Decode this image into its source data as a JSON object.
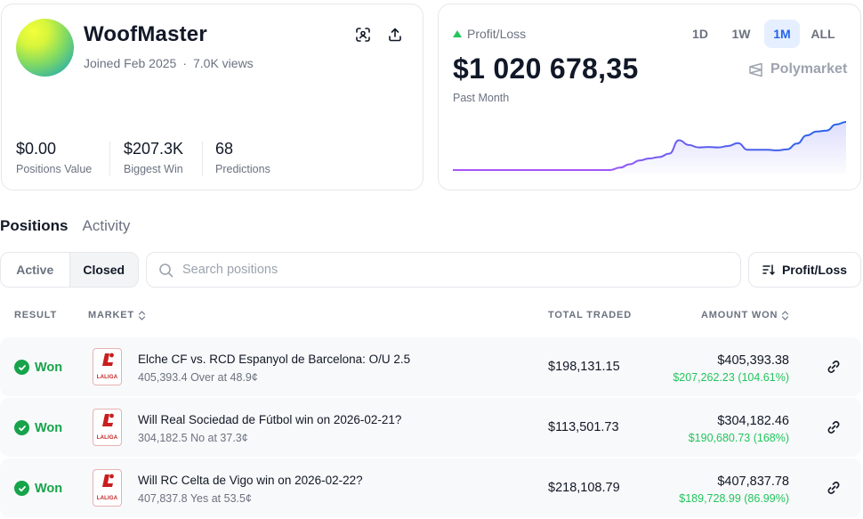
{
  "profile": {
    "username": "WoofMaster",
    "joined": "Joined Feb 2025",
    "views": "7.0K views",
    "stats": [
      {
        "value": "$0.00",
        "label": "Positions Value"
      },
      {
        "value": "$207.3K",
        "label": "Biggest Win"
      },
      {
        "value": "68",
        "label": "Predictions"
      }
    ]
  },
  "pnl": {
    "label": "Profit/Loss",
    "value": "$1 020 678,35",
    "period": "Past Month",
    "ranges": [
      "1D",
      "1W",
      "1M",
      "ALL"
    ],
    "active_range": "1M",
    "brand": "Polymarket",
    "colors": {
      "line_start": "#a855f7",
      "line_end": "#2563eb",
      "positive": "#22c55e"
    }
  },
  "chart_data": {
    "type": "area",
    "x": [
      0,
      1,
      2,
      3,
      4,
      5,
      6,
      7,
      8,
      9,
      10,
      11,
      12,
      13,
      14,
      15,
      16,
      17,
      18,
      19,
      20,
      21,
      22,
      23,
      24,
      25,
      26,
      27,
      28,
      29,
      30,
      31,
      32,
      33,
      34,
      35,
      36,
      37,
      38,
      39,
      40
    ],
    "values": [
      0,
      0,
      0,
      0,
      0,
      0,
      0,
      0,
      0,
      0,
      0,
      0,
      0,
      0,
      0,
      0,
      0,
      0.05,
      0.12,
      0.2,
      0.24,
      0.27,
      0.34,
      0.62,
      0.52,
      0.47,
      0.48,
      0.47,
      0.5,
      0.56,
      0.42,
      0.42,
      0.42,
      0.41,
      0.43,
      0.55,
      0.72,
      0.8,
      0.82,
      0.95,
      1.0
    ],
    "grid": false,
    "legend": "none"
  },
  "tabs": [
    "Positions",
    "Activity"
  ],
  "active_tab": "Positions",
  "filters": {
    "segments": [
      "Active",
      "Closed"
    ],
    "active_segment": "Closed",
    "search_placeholder": "Search positions",
    "sort_label": "Profit/Loss"
  },
  "table": {
    "headers": {
      "result": "RESULT",
      "market": "MARKET",
      "traded": "TOTAL TRADED",
      "amount": "AMOUNT WON"
    },
    "rows": [
      {
        "result": "Won",
        "logo": "LALIGA",
        "title": "Elche CF vs. RCD Espanyol de Barcelona: O/U 2.5",
        "subtitle": "405,393.4 Over at 48.9¢",
        "traded": "$198,131.15",
        "amount": "$405,393.38",
        "gain": "$207,262.23 (104.61%)"
      },
      {
        "result": "Won",
        "logo": "LALIGA",
        "title": "Will Real Sociedad de Fútbol win on 2026-02-21?",
        "subtitle": "304,182.5 No at 37.3¢",
        "traded": "$113,501.73",
        "amount": "$304,182.46",
        "gain": "$190,680.73 (168%)"
      },
      {
        "result": "Won",
        "logo": "LALIGA",
        "title": "Will RC Celta de Vigo win on 2026-02-22?",
        "subtitle": "407,837.8 Yes at 53.5¢",
        "traded": "$218,108.79",
        "amount": "$407,837.78",
        "gain": "$189,728.99 (86.99%)"
      }
    ]
  }
}
